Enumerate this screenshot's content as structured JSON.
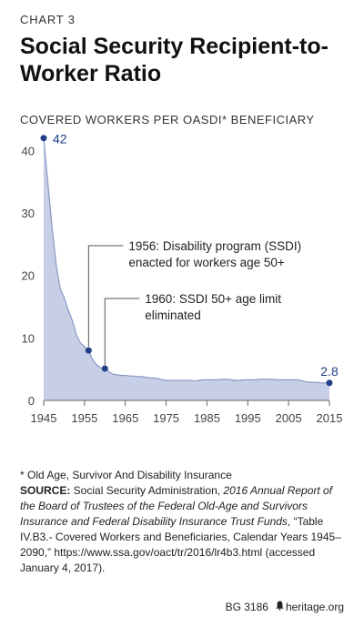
{
  "header": {
    "chart_number": "CHART 3",
    "title": "Social Security Recipient-to-Worker Ratio",
    "subtitle": "COVERED WORKERS PER OASDI* BENEFICIARY"
  },
  "chart_data": {
    "type": "area",
    "title": "Social Security Recipient-to-Worker Ratio",
    "ylabel": "COVERED WORKERS PER OASDI* BENEFICIARY",
    "xlabel": "",
    "xlim": [
      1945,
      2015
    ],
    "ylim": [
      0,
      44
    ],
    "xticks": [
      1945,
      1955,
      1965,
      1975,
      1985,
      1995,
      2005,
      2015
    ],
    "yticks": [
      0,
      10,
      20,
      30,
      40
    ],
    "grid": false,
    "legend": "none",
    "colors": {
      "fill": "#c7cfe6",
      "line": "#8a98c4",
      "marker": "#1f3f87",
      "text": "#1f3f87"
    },
    "series": [
      {
        "x": [
          1945,
          1946,
          1947,
          1948,
          1949,
          1950,
          1951,
          1952,
          1953,
          1954,
          1955,
          1956,
          1957,
          1958,
          1959,
          1960,
          1961,
          1962,
          1963,
          1964,
          1965,
          1966,
          1967,
          1968,
          1969,
          1970,
          1971,
          1972,
          1973,
          1974,
          1975,
          1976,
          1977,
          1978,
          1979,
          1980,
          1981,
          1982,
          1983,
          1984,
          1985,
          1986,
          1987,
          1988,
          1989,
          1990,
          1991,
          1992,
          1993,
          1994,
          1995,
          1996,
          1997,
          1998,
          1999,
          2000,
          2001,
          2002,
          2003,
          2004,
          2005,
          2006,
          2007,
          2008,
          2009,
          2010,
          2011,
          2012,
          2013,
          2014,
          2015
        ],
        "values": [
          41.9,
          35,
          28,
          22,
          18,
          16.5,
          14.5,
          12.8,
          10.5,
          9.2,
          8.6,
          8.0,
          6.5,
          5.7,
          5.2,
          5.1,
          4.6,
          4.2,
          4.1,
          4.0,
          4.0,
          3.9,
          3.9,
          3.8,
          3.8,
          3.7,
          3.6,
          3.6,
          3.5,
          3.3,
          3.2,
          3.2,
          3.2,
          3.2,
          3.2,
          3.2,
          3.2,
          3.1,
          3.2,
          3.3,
          3.3,
          3.3,
          3.3,
          3.3,
          3.4,
          3.4,
          3.3,
          3.2,
          3.2,
          3.3,
          3.3,
          3.3,
          3.3,
          3.4,
          3.4,
          3.4,
          3.4,
          3.3,
          3.3,
          3.3,
          3.3,
          3.3,
          3.3,
          3.2,
          3.0,
          2.9,
          2.9,
          2.9,
          2.8,
          2.8,
          2.8
        ]
      }
    ],
    "highlighted_points": [
      {
        "x": 1945,
        "y": 42,
        "label": "42"
      },
      {
        "x": 1956,
        "y": 8.0
      },
      {
        "x": 1960,
        "y": 5.1
      },
      {
        "x": 2015,
        "y": 2.8,
        "label": "2.8"
      }
    ],
    "annotations": [
      {
        "x": 1956,
        "y": 8.0,
        "text": [
          "1956: Disability program (SSDI)",
          "enacted for workers age 50+"
        ]
      },
      {
        "x": 1960,
        "y": 5.1,
        "text": [
          "1960: SSDI 50+ age limit",
          "eliminated"
        ]
      }
    ]
  },
  "notes": {
    "footnote": "* Old Age, Survivor And Disability Insurance",
    "source_label": "SOURCE:",
    "source_text_1": " Social Security Administration, ",
    "source_italic": "2016 Annual Report of the Board of Trustees of the Federal Old-Age and Survivors Insurance and Federal Disability Insurance Trust Funds",
    "source_text_2": ", “Table IV.B3.- Covered Workers and Beneficiaries, Calendar Years 1945–2090,” https://www.ssa.gov/oact/tr/2016/lr4b3.html (accessed January 4, 2017)."
  },
  "footer": {
    "code": "BG 3186",
    "bell_icon": "liberty-bell-icon",
    "site": "heritage.org"
  }
}
